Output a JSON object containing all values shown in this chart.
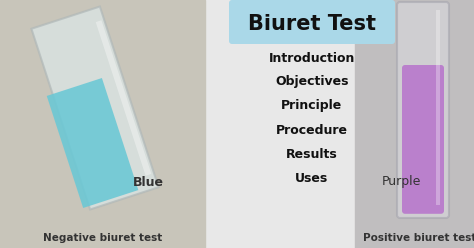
{
  "title": "Biuret Test",
  "title_bg": "#aad8e8",
  "menu_items": [
    "Introduction",
    "Objectives",
    "Principle",
    "Procedure",
    "Results",
    "Uses"
  ],
  "left_label_top": "Blue",
  "left_label_bottom": "Negative biuret test",
  "right_label_top": "Purple",
  "right_label_bottom": "Positive biuret test",
  "bg_left": "#c8c5ba",
  "bg_center": "#e8e8e8",
  "bg_right": "#c0bebf",
  "tube_left_liquid": "#6ac8d5",
  "tube_left_glass": "#dde8e8",
  "tube_right_liquid": "#b878cc",
  "tube_right_glass": "#d8d8dc",
  "text_color": "#111111",
  "title_color": "#111111",
  "label_color": "#333333",
  "figsize": [
    4.74,
    2.48
  ],
  "dpi": 100
}
